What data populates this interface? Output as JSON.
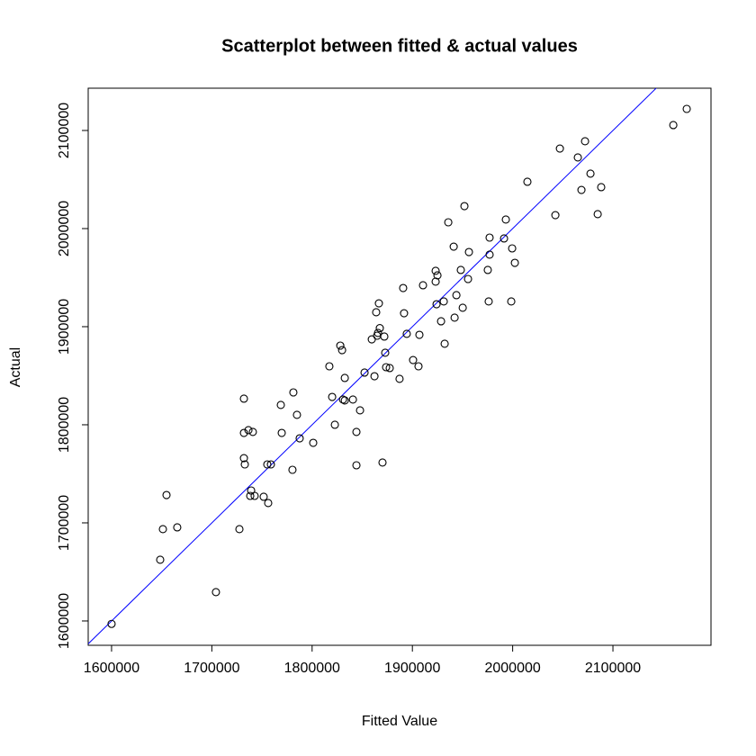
{
  "chart_data": {
    "type": "scatter",
    "title": "Scatterplot between fitted & actual values",
    "x_label": "Fitted Value",
    "y_label": "Actual",
    "color": "#000000",
    "x": [
      1600000,
      1648500,
      1651200,
      1654800,
      1665500,
      1704100,
      1727500,
      1732000,
      1732000,
      1732000,
      1732900,
      1736500,
      1738300,
      1739200,
      1740900,
      1742700,
      1751700,
      1755300,
      1756200,
      1758900,
      1768800,
      1769700,
      1780400,
      1781300,
      1784900,
      1787600,
      1801100,
      1817200,
      1820000,
      1822700,
      1828100,
      1829900,
      1830800,
      1832600,
      1832600,
      1840700,
      1844200,
      1844200,
      1847800,
      1852300,
      1859500,
      1862200,
      1863900,
      1864800,
      1865700,
      1866600,
      1867500,
      1870200,
      1872000,
      1872900,
      1873800,
      1877400,
      1887200,
      1890800,
      1891700,
      1894400,
      1900700,
      1906100,
      1907000,
      1910600,
      1923200,
      1923200,
      1924100,
      1925000,
      1928600,
      1931300,
      1932200,
      1935800,
      1941200,
      1942100,
      1943900,
      1948300,
      1950200,
      1951900,
      1955500,
      1956400,
      1975200,
      1976100,
      1977000,
      1977000,
      1991400,
      1993200,
      1998600,
      1999500,
      2002200,
      2014700,
      2042600,
      2047100,
      2065000,
      2068600,
      2072200,
      2077600,
      2084800,
      2088300,
      2160200,
      2173600
    ],
    "values": [
      1597000,
      1662400,
      1693600,
      1728400,
      1695400,
      1629400,
      1693600,
      1826600,
      1791700,
      1766000,
      1759600,
      1794500,
      1727500,
      1733000,
      1792700,
      1727500,
      1726600,
      1759600,
      1720200,
      1759600,
      1820200,
      1791700,
      1754100,
      1833000,
      1810100,
      1786200,
      1781600,
      1859600,
      1828400,
      1800000,
      1880700,
      1876100,
      1825700,
      1847700,
      1824800,
      1825700,
      1758700,
      1792700,
      1814700,
      1853200,
      1887100,
      1849500,
      1914700,
      1890800,
      1893600,
      1923800,
      1898500,
      1761500,
      1889900,
      1873400,
      1858700,
      1857800,
      1846800,
      1939400,
      1913700,
      1892700,
      1866000,
      1859600,
      1891700,
      1942200,
      1956900,
      1945900,
      1922900,
      1952300,
      1905500,
      1925700,
      1882600,
      2006400,
      1981600,
      1909200,
      1932100,
      1957800,
      1919300,
      2022900,
      1948600,
      1976100,
      1957800,
      1925700,
      1973400,
      1990800,
      1989900,
      2009200,
      1925700,
      1979800,
      1965100,
      2047700,
      2013700,
      2081600,
      2072500,
      2039400,
      2089000,
      2056000,
      2014700,
      2042200,
      2105500,
      2122000
    ],
    "xlim": [
      1576700,
      2197800
    ],
    "ylim": [
      1575200,
      2143100
    ],
    "xticks": [
      1600000,
      1700000,
      1800000,
      1900000,
      2000000,
      2100000
    ],
    "yticks": [
      1600000,
      1700000,
      1800000,
      1900000,
      2000000,
      2100000
    ],
    "abline": {
      "intercept": 0,
      "slope": 1,
      "color": "#0000ff"
    }
  }
}
